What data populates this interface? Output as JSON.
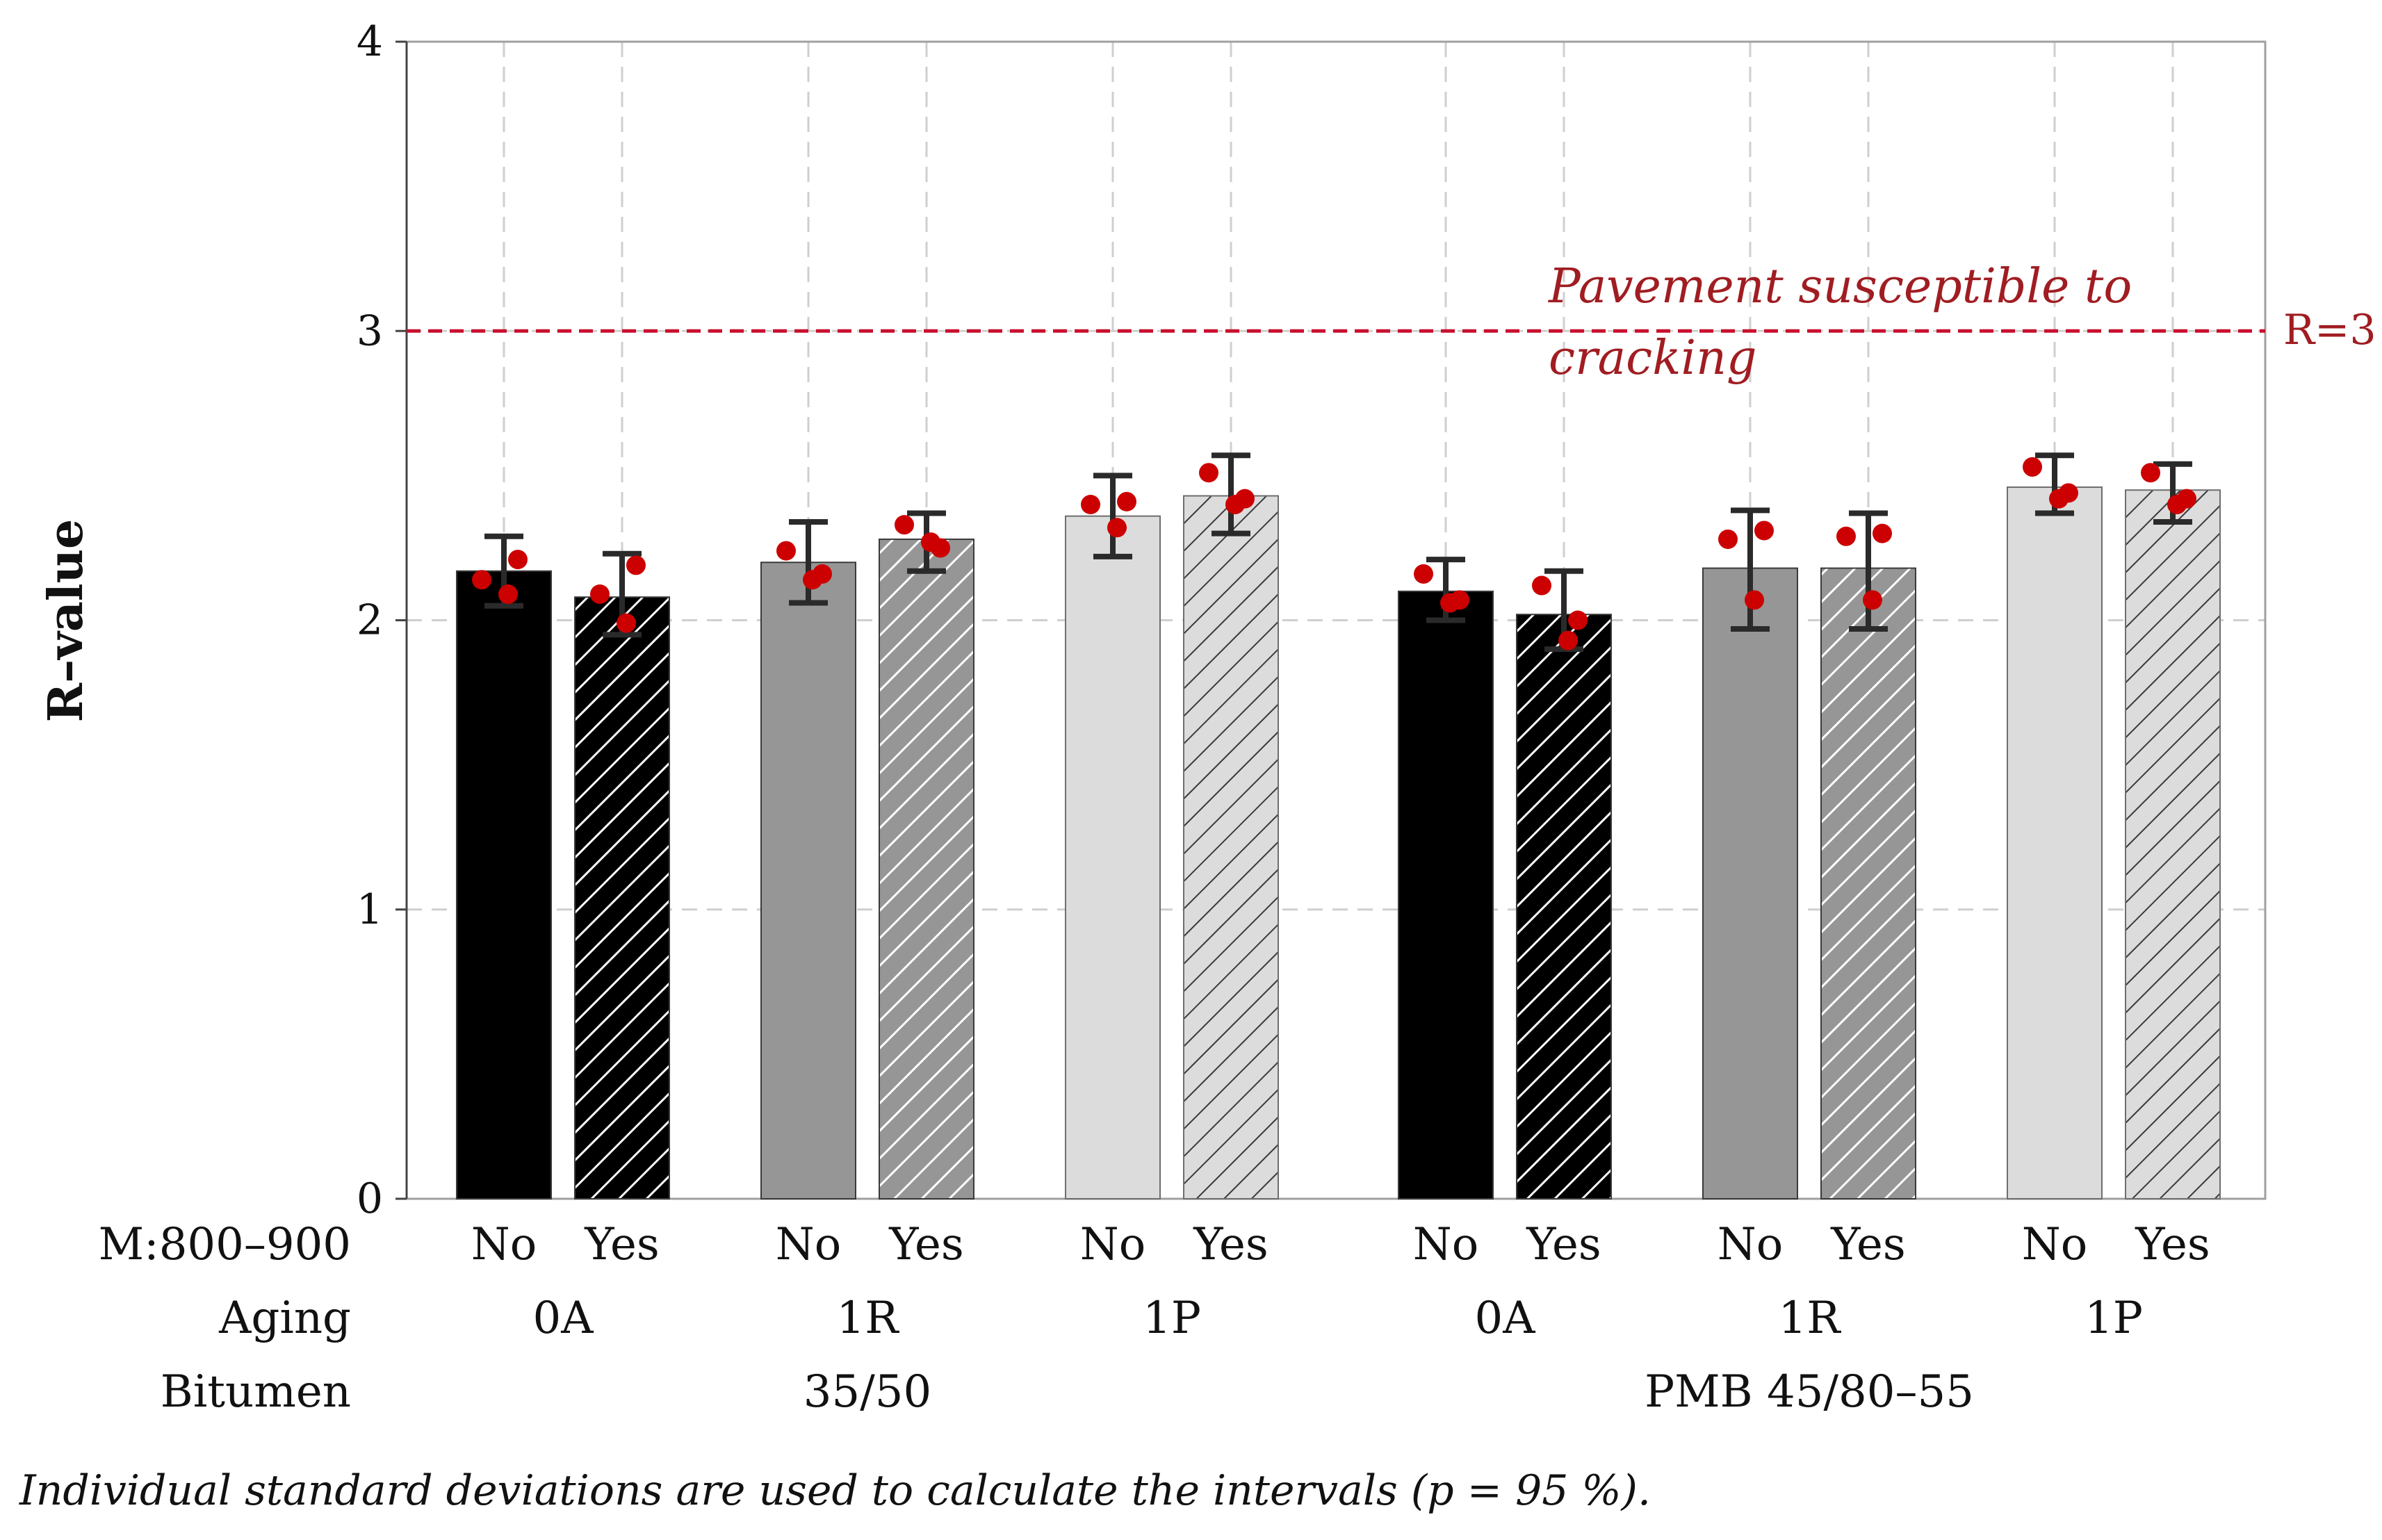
{
  "chart_data": {
    "type": "bar",
    "title": "",
    "ylabel": "R–value",
    "xlabel": "",
    "ylim": [
      0,
      4
    ],
    "yticks": [
      0,
      1,
      2,
      3,
      4
    ],
    "grid": true,
    "row_labels": {
      "m": "M:800–900",
      "aging": "Aging",
      "bitumen": "Bitumen"
    },
    "bitumen_groups": [
      "35/50",
      "PMB 45/80–55"
    ],
    "aging_levels": [
      "0A",
      "1R",
      "1P"
    ],
    "bars": [
      {
        "bitumen": "35/50",
        "aging": "0A",
        "m": "No",
        "value": 2.17,
        "ci": [
          2.05,
          2.29
        ],
        "points": [
          2.14,
          2.21,
          2.09
        ],
        "fill": "#000000",
        "hatched": false
      },
      {
        "bitumen": "35/50",
        "aging": "0A",
        "m": "Yes",
        "value": 2.08,
        "ci": [
          1.95,
          2.23
        ],
        "points": [
          2.09,
          2.19,
          1.99
        ],
        "fill": "#000000",
        "hatched": true
      },
      {
        "bitumen": "35/50",
        "aging": "1R",
        "m": "No",
        "value": 2.2,
        "ci": [
          2.06,
          2.34
        ],
        "points": [
          2.24,
          2.16,
          2.14
        ],
        "fill": "#969696",
        "hatched": false
      },
      {
        "bitumen": "35/50",
        "aging": "1R",
        "m": "Yes",
        "value": 2.28,
        "ci": [
          2.17,
          2.37
        ],
        "points": [
          2.33,
          2.25,
          2.27
        ],
        "fill": "#969696",
        "hatched": true
      },
      {
        "bitumen": "35/50",
        "aging": "1P",
        "m": "No",
        "value": 2.36,
        "ci": [
          2.22,
          2.5
        ],
        "points": [
          2.4,
          2.41,
          2.32
        ],
        "fill": "#dcdcdc",
        "hatched": false
      },
      {
        "bitumen": "35/50",
        "aging": "1P",
        "m": "Yes",
        "value": 2.43,
        "ci": [
          2.3,
          2.57
        ],
        "points": [
          2.51,
          2.42,
          2.4
        ],
        "fill": "#dcdcdc",
        "hatched": true
      },
      {
        "bitumen": "PMB 45/80–55",
        "aging": "0A",
        "m": "No",
        "value": 2.1,
        "ci": [
          2.0,
          2.21
        ],
        "points": [
          2.16,
          2.07,
          2.06
        ],
        "fill": "#000000",
        "hatched": false
      },
      {
        "bitumen": "PMB 45/80–55",
        "aging": "0A",
        "m": "Yes",
        "value": 2.02,
        "ci": [
          1.9,
          2.17
        ],
        "points": [
          2.12,
          2.0,
          1.93
        ],
        "fill": "#000000",
        "hatched": true
      },
      {
        "bitumen": "PMB 45/80–55",
        "aging": "1R",
        "m": "No",
        "value": 2.18,
        "ci": [
          1.97,
          2.38
        ],
        "points": [
          2.28,
          2.31,
          2.07
        ],
        "fill": "#969696",
        "hatched": false
      },
      {
        "bitumen": "PMB 45/80–55",
        "aging": "1R",
        "m": "Yes",
        "value": 2.18,
        "ci": [
          1.97,
          2.37
        ],
        "points": [
          2.29,
          2.3,
          2.07
        ],
        "fill": "#969696",
        "hatched": true
      },
      {
        "bitumen": "PMB 45/80–55",
        "aging": "1P",
        "m": "No",
        "value": 2.46,
        "ci": [
          2.37,
          2.57
        ],
        "points": [
          2.53,
          2.44,
          2.42
        ],
        "fill": "#dcdcdc",
        "hatched": false
      },
      {
        "bitumen": "PMB 45/80–55",
        "aging": "1P",
        "m": "Yes",
        "value": 2.45,
        "ci": [
          2.34,
          2.54
        ],
        "points": [
          2.51,
          2.42,
          2.4
        ],
        "fill": "#dcdcdc",
        "hatched": true
      }
    ],
    "threshold": {
      "value": 3,
      "label": "R=3",
      "annotation_line1": "Pavement susceptible to",
      "annotation_line2": "cracking",
      "color": "#c8102e"
    },
    "point_color": "#cc0000",
    "footnote": "Individual standard deviations are used to calculate the intervals (p = 95 %)."
  }
}
